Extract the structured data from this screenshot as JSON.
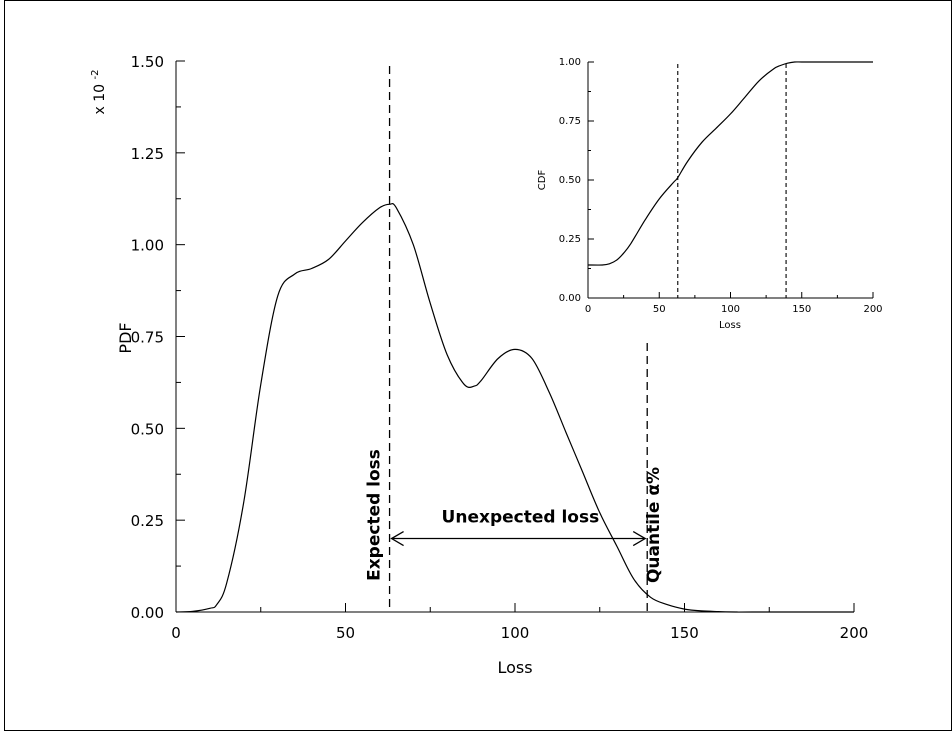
{
  "chart_data": [
    {
      "type": "line",
      "name": "main",
      "xlabel": "Loss",
      "ylabel": "PDF",
      "scale_label": "x 10",
      "scale_exponent": "-2",
      "xlim": [
        0,
        200
      ],
      "ylim": [
        0,
        1.5
      ],
      "xticks": [
        "0",
        "50",
        "100",
        "150",
        "200"
      ],
      "yticks": [
        "0.00",
        "0.25",
        "0.50",
        "0.75",
        "1.00",
        "1.25",
        "1.50"
      ],
      "series": [
        {
          "x": [
            0,
            5,
            10,
            12,
            15,
            20,
            25,
            30,
            35,
            40,
            45,
            50,
            55,
            60,
            63,
            65,
            70,
            75,
            80,
            85,
            88,
            90,
            95,
            100,
            105,
            110,
            115,
            120,
            125,
            130,
            135,
            140,
            145,
            150,
            155,
            160,
            165,
            170,
            200
          ],
          "y": [
            0.0,
            0.002,
            0.01,
            0.02,
            0.08,
            0.3,
            0.62,
            0.86,
            0.92,
            0.935,
            0.96,
            1.01,
            1.06,
            1.1,
            1.11,
            1.1,
            1.0,
            0.84,
            0.7,
            0.62,
            0.615,
            0.63,
            0.69,
            0.715,
            0.69,
            0.6,
            0.49,
            0.38,
            0.27,
            0.18,
            0.09,
            0.04,
            0.02,
            0.008,
            0.003,
            0.001,
            0.0,
            0.0,
            0.0
          ]
        }
      ],
      "vlines": [
        63,
        139
      ],
      "annotations": {
        "expected": "Expected loss",
        "unexpected": "Unexpected loss",
        "quantile": "Quantile α%"
      },
      "arrow_y": 0.2
    },
    {
      "type": "line",
      "name": "inset",
      "xlabel": "Loss",
      "ylabel": "CDF",
      "xlim": [
        0,
        200
      ],
      "ylim": [
        0,
        1
      ],
      "xticks": [
        "0",
        "50",
        "100",
        "150",
        "200"
      ],
      "yticks": [
        "0.00",
        "0.25",
        "0.50",
        "0.75",
        "1.00"
      ],
      "series": [
        {
          "x": [
            0,
            10,
            15,
            20,
            25,
            30,
            40,
            50,
            60,
            63,
            70,
            80,
            90,
            100,
            110,
            120,
            130,
            135,
            140,
            145,
            150,
            160,
            200
          ],
          "y": [
            0.14,
            0.14,
            0.145,
            0.16,
            0.19,
            0.23,
            0.33,
            0.42,
            0.49,
            0.51,
            0.58,
            0.66,
            0.72,
            0.78,
            0.85,
            0.92,
            0.97,
            0.985,
            0.995,
            1.0,
            1.0,
            1.0,
            1.0
          ]
        }
      ],
      "vlines": [
        63,
        139
      ]
    }
  ]
}
